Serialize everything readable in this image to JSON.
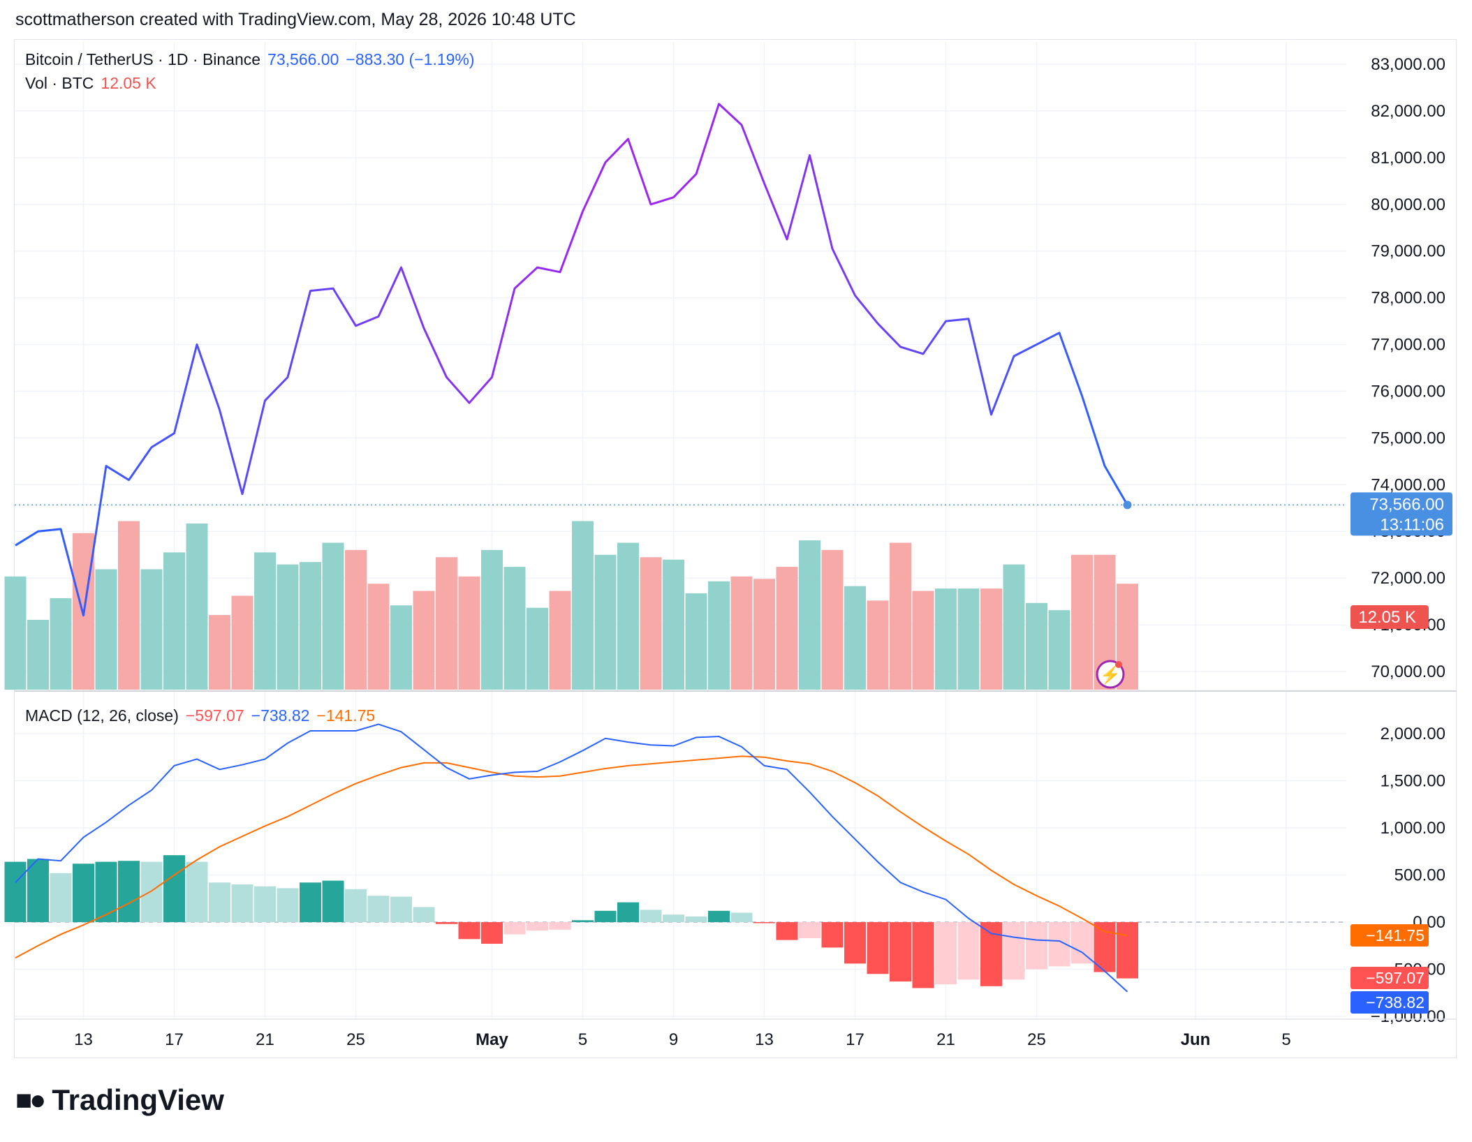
{
  "header": {
    "text": "scottmatherson created with TradingView.com, May 28, 2026 10:48 UTC"
  },
  "legend": {
    "symbol": "Bitcoin / TetherUS · 1D · Binance",
    "last": "73,566.00",
    "change": "−883.30 (−1.19%)",
    "vol_label": "Vol · BTC",
    "vol_value": "12.05 K",
    "macd_label": "MACD (12, 26, close)",
    "macd_hist": "−597.07",
    "macd_line": "−738.82",
    "macd_signal": "−141.75"
  },
  "brand": {
    "name": "TradingView"
  },
  "colors": {
    "up": "#26a69a",
    "down": "#ef5350",
    "vol_up": "#92d2cc",
    "vol_down": "#f7a9a7",
    "price_start": "#2962ff",
    "price_mid": "#9c27f0",
    "macd": "#2962ff",
    "signal": "#ff6d00",
    "hist_up_strong": "#26a69a",
    "hist_up_weak": "#b2dfdb",
    "hist_down_strong": "#ff5252",
    "hist_down_weak": "#ffcdd2",
    "last_tag": "#4a90e2",
    "vol_tag": "#ef5350",
    "signal_tag": "#ff6d00",
    "hist_tag": "#ff5252",
    "macd_tag": "#2962ff"
  },
  "current_price_tag": {
    "price": "73,566.00",
    "countdown": "13:11:06"
  },
  "price_axis_labels": [
    "83,000.00",
    "82,000.00",
    "81,000.00",
    "80,000.00",
    "79,000.00",
    "78,000.00",
    "77,000.00",
    "76,000.00",
    "75,000.00",
    "74,000.00",
    "73,000.00",
    "72,000.00",
    "71,000.00",
    "70,000.00"
  ],
  "macd_axis_labels": [
    "2,000.00",
    "1,500.00",
    "1,000.00",
    "500.00",
    "0.00",
    "−500.00",
    "−1,000.00"
  ],
  "x_tick_labels": [
    {
      "label": "13",
      "day": 3
    },
    {
      "label": "17",
      "day": 7
    },
    {
      "label": "21",
      "day": 11
    },
    {
      "label": "25",
      "day": 15
    },
    {
      "label": "May",
      "day": 21,
      "bold": true
    },
    {
      "label": "5",
      "day": 25
    },
    {
      "label": "9",
      "day": 29
    },
    {
      "label": "13",
      "day": 33
    },
    {
      "label": "17",
      "day": 37
    },
    {
      "label": "21",
      "day": 41
    },
    {
      "label": "25",
      "day": 45
    },
    {
      "label": "Jun",
      "day": 52,
      "bold": true
    },
    {
      "label": "5",
      "day": 56
    }
  ],
  "chart_data": [
    {
      "type": "line",
      "title": "Bitcoin / TetherUS · 1D · Binance",
      "x_start": "2026-04-10",
      "x_end": "2026-05-28",
      "ylim": [
        69500,
        83600
      ],
      "series": [
        {
          "name": "BTCUSDT close",
          "values": [
            72700,
            73000,
            73050,
            71200,
            74400,
            74100,
            74800,
            75100,
            77000,
            75600,
            73800,
            75800,
            76300,
            78150,
            78200,
            77400,
            77600,
            78650,
            77350,
            76300,
            75750,
            76300,
            78200,
            78650,
            78550,
            79850,
            80900,
            81400,
            80000,
            80150,
            80650,
            82150,
            81700,
            80450,
            79250,
            81050,
            79050,
            78050,
            77450,
            76950,
            76800,
            77500,
            77550,
            75500,
            76750,
            77000,
            77250,
            75900,
            74400,
            73566
          ]
        }
      ]
    },
    {
      "type": "bar",
      "title": "Vol · BTC",
      "series": [
        {
          "name": "Volume",
          "values": [
            23.5,
            14.5,
            19,
            32.5,
            25,
            35,
            25,
            28.5,
            34.5,
            15.5,
            19.5,
            28.5,
            26,
            26.5,
            30.5,
            29,
            22,
            17.5,
            20.5,
            27.5,
            23.5,
            29,
            25.5,
            17,
            20.5,
            35,
            28,
            30.5,
            27.5,
            27,
            20,
            22.5,
            23.5,
            23,
            25.5,
            31,
            29,
            21.5,
            18.5,
            30.5,
            20.5,
            21,
            21,
            21,
            26,
            18,
            16.5,
            28,
            28,
            22
          ],
          "direction": [
            "up",
            "up",
            "up",
            "down",
            "up",
            "down",
            "up",
            "up",
            "up",
            "down",
            "down",
            "up",
            "up",
            "up",
            "up",
            "down",
            "down",
            "up",
            "down",
            "down",
            "down",
            "up",
            "up",
            "up",
            "down",
            "up",
            "up",
            "up",
            "down",
            "up",
            "up",
            "up",
            "down",
            "down",
            "down",
            "up",
            "down",
            "up",
            "down",
            "down",
            "down",
            "up",
            "up",
            "down",
            "up",
            "up",
            "up",
            "down",
            "down",
            "down"
          ]
        }
      ]
    },
    {
      "type": "line",
      "title": "MACD (12, 26, close)",
      "ylim": [
        -1000,
        2150
      ],
      "series": [
        {
          "name": "MACD",
          "values": [
            420,
            670,
            650,
            900,
            1060,
            1240,
            1400,
            1660,
            1730,
            1620,
            1670,
            1730,
            1900,
            2030,
            2030,
            2030,
            2100,
            2020,
            1830,
            1640,
            1520,
            1560,
            1590,
            1600,
            1700,
            1820,
            1950,
            1910,
            1880,
            1870,
            1960,
            1970,
            1860,
            1660,
            1620,
            1380,
            1120,
            880,
            640,
            420,
            320,
            240,
            40,
            -120,
            -160,
            -190,
            -200,
            -320,
            -520,
            -738.82
          ]
        },
        {
          "name": "Signal",
          "values": [
            -380,
            -250,
            -130,
            -30,
            80,
            200,
            330,
            500,
            660,
            800,
            910,
            1020,
            1120,
            1240,
            1360,
            1470,
            1560,
            1640,
            1690,
            1690,
            1640,
            1590,
            1550,
            1540,
            1550,
            1590,
            1630,
            1660,
            1680,
            1700,
            1720,
            1740,
            1760,
            1750,
            1710,
            1680,
            1600,
            1480,
            1340,
            1170,
            1010,
            860,
            720,
            550,
            400,
            280,
            170,
            40,
            -100,
            -141.75
          ]
        },
        {
          "name": "Histogram",
          "values": [
            640,
            670,
            520,
            620,
            640,
            650,
            640,
            710,
            640,
            420,
            400,
            380,
            360,
            420,
            440,
            350,
            280,
            270,
            160,
            -20,
            -180,
            -230,
            -130,
            -90,
            -80,
            20,
            120,
            210,
            130,
            80,
            60,
            120,
            100,
            -10,
            -190,
            -170,
            -270,
            -440,
            -550,
            -630,
            -700,
            -660,
            -610,
            -680,
            -610,
            -500,
            -470,
            -440,
            -530,
            -597.07
          ]
        }
      ]
    }
  ]
}
